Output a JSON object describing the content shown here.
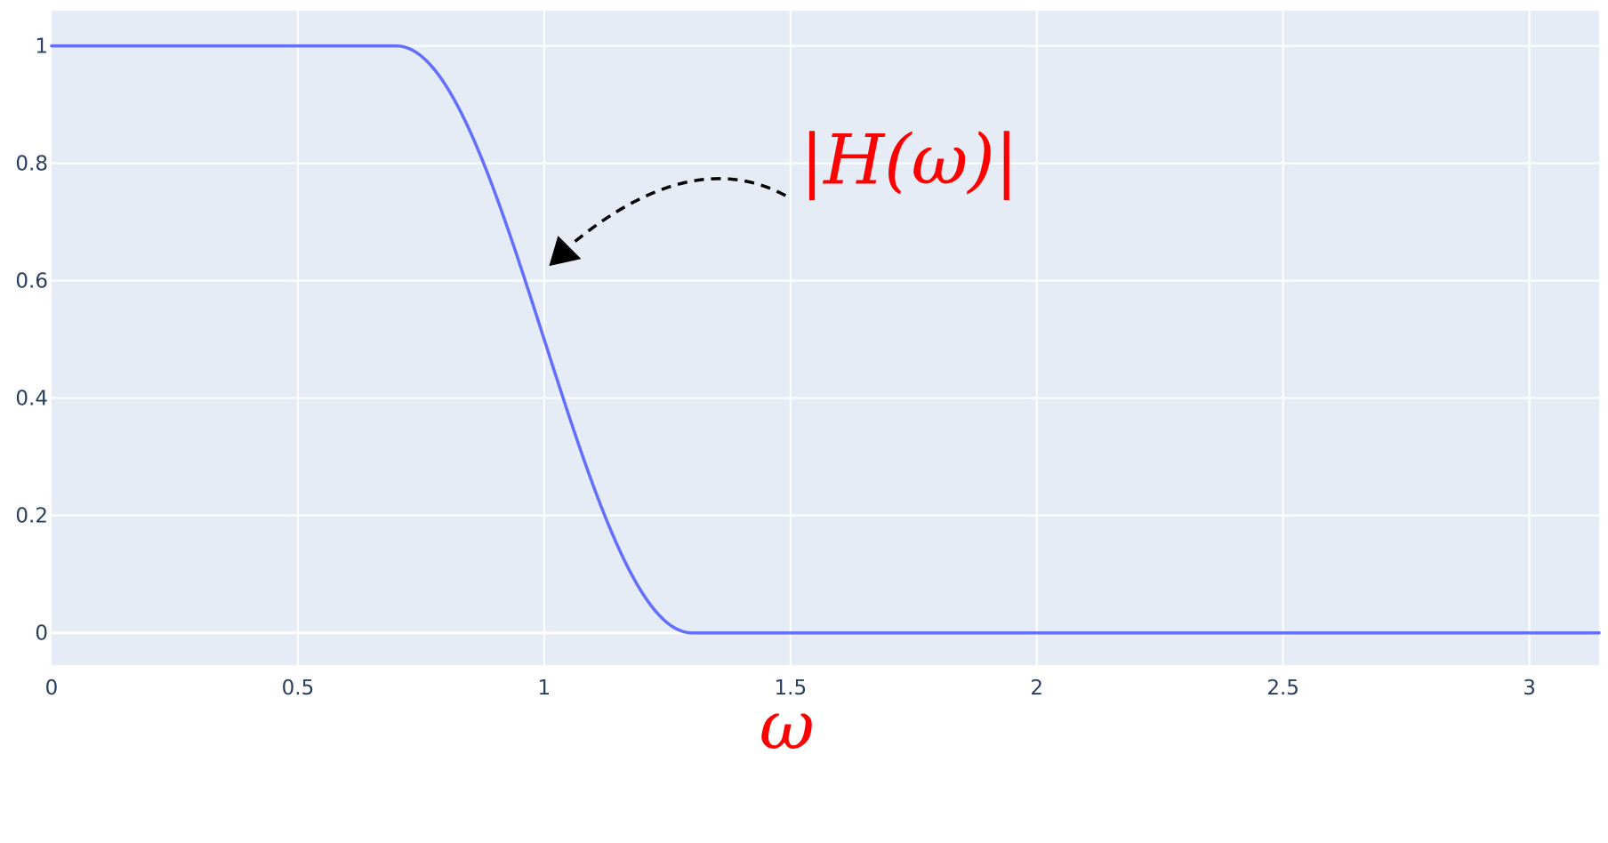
{
  "chart_data": {
    "type": "line",
    "title": "",
    "xlabel": "ω",
    "ylabel": "",
    "xlim": [
      0,
      3.14159
    ],
    "ylim": [
      -0.055,
      1.06
    ],
    "grid": true,
    "xticks": [
      0,
      0.5,
      1,
      1.5,
      2,
      2.5,
      3
    ],
    "xtick_labels": [
      "0",
      "0.5",
      "1",
      "1.5",
      "2",
      "2.5",
      "3"
    ],
    "yticks": [
      0,
      0.2,
      0.4,
      0.6,
      0.8,
      1
    ],
    "ytick_labels": [
      "0",
      "0.2",
      "0.4",
      "0.6",
      "0.8",
      "1"
    ],
    "series": [
      {
        "x": [
          0,
          0.1,
          0.2,
          0.3,
          0.4,
          0.5,
          0.6,
          0.7,
          0.72,
          0.74,
          0.76,
          0.78,
          0.8,
          0.82,
          0.84,
          0.86,
          0.88,
          0.9,
          0.92,
          0.94,
          0.96,
          0.98,
          1.0,
          1.02,
          1.04,
          1.06,
          1.08,
          1.1,
          1.12,
          1.14,
          1.16,
          1.18,
          1.2,
          1.22,
          1.24,
          1.26,
          1.28,
          1.3,
          1.4,
          1.6,
          2.0,
          2.5,
          3.0,
          3.14159
        ],
        "y": [
          1.0,
          1.0,
          1.0,
          1.0,
          1.0,
          1.0,
          1.0,
          1.0,
          0.999,
          0.996,
          0.99,
          0.978,
          0.96,
          0.935,
          0.9,
          0.855,
          0.8,
          0.74,
          0.67,
          0.6,
          0.52,
          0.44,
          0.5,
          0.42,
          0.35,
          0.28,
          0.22,
          0.165,
          0.12,
          0.085,
          0.055,
          0.034,
          0.02,
          0.011,
          0.005,
          0.002,
          0.0005,
          0.0,
          0.0,
          0.0,
          0.0,
          0.0,
          0.0,
          0.0
        ],
        "color": "#636efa"
      }
    ],
    "annotations": [
      {
        "text": "|H(ω)|",
        "color": "#ff0000"
      }
    ],
    "colors": {
      "plot_background": "#e5ecf6",
      "grid": "#ffffff",
      "tick_text": "#2a3f5f",
      "label": "#ff0000",
      "arrow": "#000000"
    }
  }
}
